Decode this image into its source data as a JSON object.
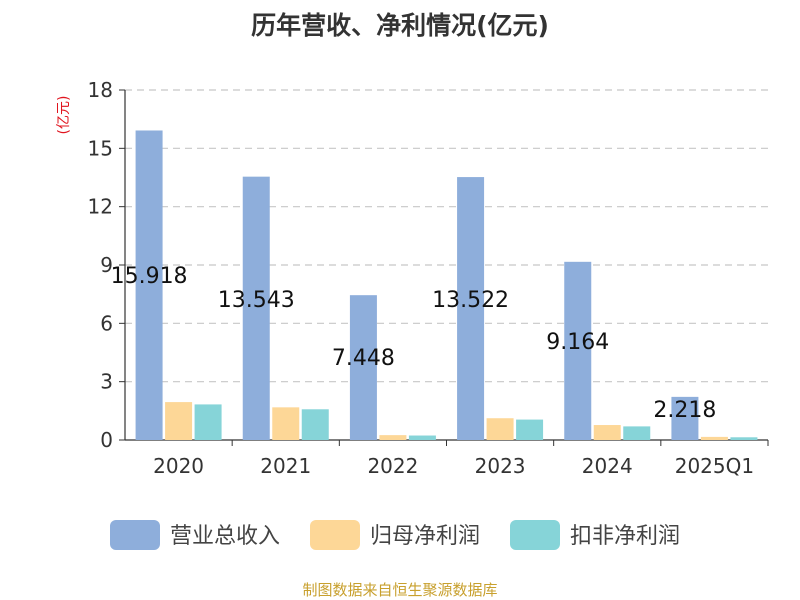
{
  "source_note": "制图数据来自恒生聚源数据库",
  "chart_data": {
    "type": "bar",
    "title": "历年营收、净利情况(亿元)",
    "ylabel": "(亿元)",
    "xlabel": "",
    "categories": [
      "2020",
      "2021",
      "2022",
      "2023",
      "2024",
      "2025Q1"
    ],
    "ylim": [
      0,
      18
    ],
    "yticks": [
      0,
      3,
      6,
      9,
      12,
      15,
      18
    ],
    "grid": true,
    "legend_position": "bottom",
    "series": [
      {
        "name": "营业总收入",
        "color": "#8eaedb",
        "values": [
          15.918,
          13.543,
          7.448,
          13.522,
          9.164,
          2.218
        ],
        "labels": [
          "15.918",
          "13.543",
          "7.448",
          "13.522",
          "9.164",
          "2.218"
        ]
      },
      {
        "name": "归母净利润",
        "color": "#fdd797",
        "values": [
          1.95,
          1.68,
          0.25,
          1.12,
          0.77,
          0.16
        ]
      },
      {
        "name": "扣非净利润",
        "color": "#86d4d8",
        "values": [
          1.83,
          1.58,
          0.23,
          1.05,
          0.7,
          0.14
        ]
      }
    ]
  }
}
